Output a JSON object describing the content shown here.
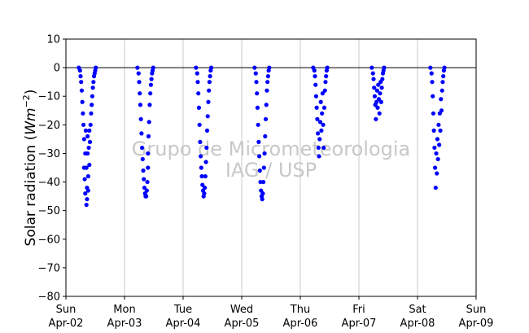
{
  "chart_data": {
    "type": "scatter",
    "title": "",
    "xlabel": "",
    "ylabel": "Solar radiation (Wm^-2)",
    "ylabel_parts": {
      "prefix": "Solar radiation (",
      "unit_base": "Wm",
      "unit_exponent": "−2",
      "suffix": ")"
    },
    "ylim": [
      -80,
      10
    ],
    "yticks": [
      "10",
      "0",
      "−10",
      "−20",
      "−30",
      "−40",
      "−50",
      "−60",
      "−70",
      "−80"
    ],
    "ytick_values": [
      10,
      0,
      -10,
      -20,
      -30,
      -40,
      -50,
      -60,
      -70,
      -80
    ],
    "xlim_days": [
      0,
      7
    ],
    "xticks": [
      {
        "day": 0,
        "weekday": "Sun",
        "date": "Apr-02"
      },
      {
        "day": 1,
        "weekday": "Mon",
        "date": "Apr-03"
      },
      {
        "day": 2,
        "weekday": "Tue",
        "date": "Apr-04"
      },
      {
        "day": 3,
        "weekday": "Wed",
        "date": "Apr-05"
      },
      {
        "day": 4,
        "weekday": "Thu",
        "date": "Apr-06"
      },
      {
        "day": 5,
        "weekday": "Fri",
        "date": "Apr-07"
      },
      {
        "day": 6,
        "weekday": "Sat",
        "date": "Apr-08"
      },
      {
        "day": 7,
        "weekday": "Sun",
        "date": "Apr-09"
      }
    ],
    "grid": "x",
    "zero_line": 0,
    "marker_color": "#0000ff",
    "watermark": [
      "Grupo de Micrometeorologia",
      "IAG / USP"
    ],
    "daily_minima": [
      {
        "date": "Apr-02",
        "min": -48
      },
      {
        "date": "Apr-03",
        "min": -45
      },
      {
        "date": "Apr-04",
        "min": -45
      },
      {
        "date": "Apr-05",
        "min": -46
      },
      {
        "date": "Apr-06",
        "min": -31
      },
      {
        "date": "Apr-07",
        "min": -18
      },
      {
        "date": "Apr-08",
        "min": -42
      }
    ],
    "series": [
      {
        "name": "",
        "points": [
          [
            0.22,
            0
          ],
          [
            0.24,
            -1
          ],
          [
            0.25,
            -3
          ],
          [
            0.26,
            -5
          ],
          [
            0.27,
            -8
          ],
          [
            0.28,
            -12
          ],
          [
            0.29,
            -16
          ],
          [
            0.3,
            -20
          ],
          [
            0.31,
            -25
          ],
          [
            0.31,
            -35
          ],
          [
            0.32,
            -39
          ],
          [
            0.33,
            -44
          ],
          [
            0.33,
            -30
          ],
          [
            0.34,
            -22
          ],
          [
            0.35,
            -35
          ],
          [
            0.35,
            -48
          ],
          [
            0.36,
            -46
          ],
          [
            0.36,
            -42
          ],
          [
            0.37,
            -30
          ],
          [
            0.37,
            -24
          ],
          [
            0.38,
            -38
          ],
          [
            0.38,
            -43
          ],
          [
            0.39,
            -28
          ],
          [
            0.4,
            -22
          ],
          [
            0.4,
            -34
          ],
          [
            0.41,
            -26
          ],
          [
            0.42,
            -20
          ],
          [
            0.43,
            -16
          ],
          [
            0.44,
            -13
          ],
          [
            0.45,
            -10
          ],
          [
            0.46,
            -7
          ],
          [
            0.47,
            -5
          ],
          [
            0.48,
            -3
          ],
          [
            0.49,
            -2
          ],
          [
            0.5,
            -1
          ],
          [
            0.51,
            0
          ],
          [
            1.22,
            0
          ],
          [
            1.24,
            -2
          ],
          [
            1.25,
            -5
          ],
          [
            1.26,
            -9
          ],
          [
            1.27,
            -13
          ],
          [
            1.28,
            -18
          ],
          [
            1.29,
            -23
          ],
          [
            1.3,
            -28
          ],
          [
            1.31,
            -32
          ],
          [
            1.32,
            -36
          ],
          [
            1.33,
            -39
          ],
          [
            1.34,
            -42
          ],
          [
            1.35,
            -44
          ],
          [
            1.36,
            -45
          ],
          [
            1.37,
            -45
          ],
          [
            1.38,
            -43
          ],
          [
            1.39,
            -40
          ],
          [
            1.4,
            -35
          ],
          [
            1.4,
            -30
          ],
          [
            1.41,
            -24
          ],
          [
            1.42,
            -19
          ],
          [
            1.43,
            -13
          ],
          [
            1.44,
            -9
          ],
          [
            1.45,
            -6
          ],
          [
            1.46,
            -4
          ],
          [
            1.47,
            -2
          ],
          [
            1.48,
            -1
          ],
          [
            1.49,
            0
          ],
          [
            2.22,
            0
          ],
          [
            2.24,
            -2
          ],
          [
            2.25,
            -5
          ],
          [
            2.26,
            -9
          ],
          [
            2.27,
            -14
          ],
          [
            2.28,
            -20
          ],
          [
            2.29,
            -26
          ],
          [
            2.3,
            -31
          ],
          [
            2.31,
            -35
          ],
          [
            2.32,
            -38
          ],
          [
            2.33,
            -41
          ],
          [
            2.34,
            -43
          ],
          [
            2.35,
            -45
          ],
          [
            2.36,
            -44
          ],
          [
            2.37,
            -42
          ],
          [
            2.38,
            -38
          ],
          [
            2.39,
            -33
          ],
          [
            2.4,
            -28
          ],
          [
            2.41,
            -22
          ],
          [
            2.42,
            -17
          ],
          [
            2.43,
            -12
          ],
          [
            2.44,
            -8
          ],
          [
            2.45,
            -5
          ],
          [
            2.46,
            -3
          ],
          [
            2.47,
            -1
          ],
          [
            2.48,
            0
          ],
          [
            3.22,
            0
          ],
          [
            3.24,
            -2
          ],
          [
            3.25,
            -5
          ],
          [
            3.26,
            -9
          ],
          [
            3.27,
            -14
          ],
          [
            3.28,
            -20
          ],
          [
            3.29,
            -26
          ],
          [
            3.3,
            -31
          ],
          [
            3.31,
            -36
          ],
          [
            3.32,
            -40
          ],
          [
            3.33,
            -43
          ],
          [
            3.34,
            -45
          ],
          [
            3.35,
            -46
          ],
          [
            3.36,
            -44
          ],
          [
            3.37,
            -40
          ],
          [
            3.38,
            -35
          ],
          [
            3.39,
            -30
          ],
          [
            3.4,
            -24
          ],
          [
            3.41,
            -18
          ],
          [
            3.42,
            -13
          ],
          [
            3.43,
            -8
          ],
          [
            3.44,
            -5
          ],
          [
            3.45,
            -3
          ],
          [
            3.46,
            -1
          ],
          [
            3.47,
            0
          ],
          [
            4.22,
            0
          ],
          [
            4.24,
            -1
          ],
          [
            4.25,
            -3
          ],
          [
            4.26,
            -6
          ],
          [
            4.27,
            -10
          ],
          [
            4.28,
            -14
          ],
          [
            4.29,
            -18
          ],
          [
            4.3,
            -23
          ],
          [
            4.31,
            -28
          ],
          [
            4.32,
            -31
          ],
          [
            4.33,
            -25
          ],
          [
            4.34,
            -19
          ],
          [
            4.35,
            -12
          ],
          [
            4.36,
            -22
          ],
          [
            4.37,
            -16
          ],
          [
            4.38,
            -9
          ],
          [
            4.39,
            -20
          ],
          [
            4.4,
            -28
          ],
          [
            4.41,
            -14
          ],
          [
            4.42,
            -8
          ],
          [
            4.43,
            -5
          ],
          [
            4.44,
            -3
          ],
          [
            4.45,
            -1
          ],
          [
            4.46,
            0
          ],
          [
            5.22,
            0
          ],
          [
            5.24,
            -2
          ],
          [
            5.25,
            -4
          ],
          [
            5.26,
            -7
          ],
          [
            5.27,
            -10
          ],
          [
            5.28,
            -13
          ],
          [
            5.29,
            -18
          ],
          [
            5.3,
            -12
          ],
          [
            5.31,
            -8
          ],
          [
            5.32,
            -14
          ],
          [
            5.33,
            -6
          ],
          [
            5.34,
            -11
          ],
          [
            5.35,
            -16
          ],
          [
            5.36,
            -9
          ],
          [
            5.37,
            -5
          ],
          [
            5.38,
            -12
          ],
          [
            5.39,
            -7
          ],
          [
            5.4,
            -4
          ],
          [
            5.41,
            -2
          ],
          [
            5.42,
            -1
          ],
          [
            5.43,
            0
          ],
          [
            6.22,
            0
          ],
          [
            6.24,
            -2
          ],
          [
            6.25,
            -5
          ],
          [
            6.26,
            -10
          ],
          [
            6.27,
            -16
          ],
          [
            6.28,
            -22
          ],
          [
            6.29,
            -28
          ],
          [
            6.3,
            -35
          ],
          [
            6.31,
            -42
          ],
          [
            6.32,
            -30
          ],
          [
            6.33,
            -37
          ],
          [
            6.34,
            -25
          ],
          [
            6.35,
            -32
          ],
          [
            6.36,
            -20
          ],
          [
            6.37,
            -27
          ],
          [
            6.38,
            -16
          ],
          [
            6.39,
            -22
          ],
          [
            6.4,
            -11
          ],
          [
            6.41,
            -15
          ],
          [
            6.42,
            -8
          ],
          [
            6.43,
            -5
          ],
          [
            6.44,
            -3
          ],
          [
            6.45,
            -1
          ],
          [
            6.46,
            0
          ]
        ]
      }
    ]
  }
}
